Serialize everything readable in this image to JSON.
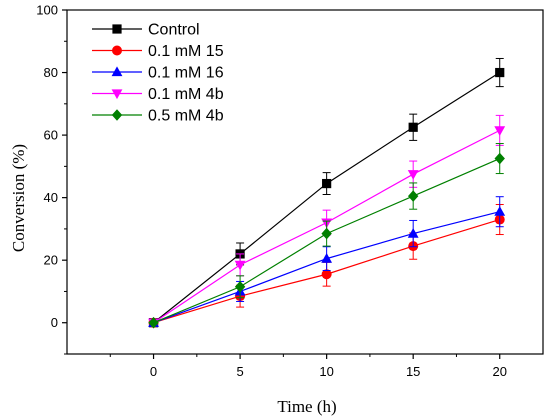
{
  "chart_data": {
    "type": "line",
    "xlabel": "Time (h)",
    "ylabel": "Conversion (%)",
    "x": [
      0,
      5,
      10,
      15,
      20
    ],
    "xlim": [
      -5,
      22.5
    ],
    "ylim": [
      -10,
      100
    ],
    "xticks": [
      0,
      5,
      10,
      15,
      20
    ],
    "yticks": [
      0,
      20,
      40,
      60,
      80,
      100
    ],
    "grid": false,
    "legend_position": "top-left",
    "series": [
      {
        "name": "Control",
        "color": "#000000",
        "marker": "square",
        "values": [
          0,
          22,
          44.5,
          62.5,
          80
        ],
        "errors": [
          0,
          3.5,
          3.5,
          4.2,
          4.5
        ]
      },
      {
        "name": "0.1 mM 15",
        "color": "#ff0000",
        "marker": "circle",
        "values": [
          0,
          8.5,
          15.5,
          24.5,
          33
        ],
        "errors": [
          0,
          3.5,
          3.8,
          4.2,
          4.8
        ]
      },
      {
        "name": "0.1 mM 16",
        "color": "#0000ff",
        "marker": "triangle-up",
        "values": [
          0,
          10,
          20.5,
          28.5,
          35.5
        ],
        "errors": [
          0,
          3.2,
          3.8,
          4.2,
          4.8
        ]
      },
      {
        "name": "0.1 mM 4b",
        "color": "#ff00ff",
        "marker": "triangle-down",
        "values": [
          0,
          18.5,
          32,
          47.5,
          61.5
        ],
        "errors": [
          0,
          3.5,
          4.0,
          4.2,
          4.8
        ]
      },
      {
        "name": "0.5 mM 4b",
        "color": "#008000",
        "marker": "diamond",
        "values": [
          0,
          11.5,
          28.5,
          40.5,
          52.5
        ],
        "errors": [
          0,
          3.5,
          4.0,
          4.2,
          4.8
        ]
      }
    ]
  }
}
